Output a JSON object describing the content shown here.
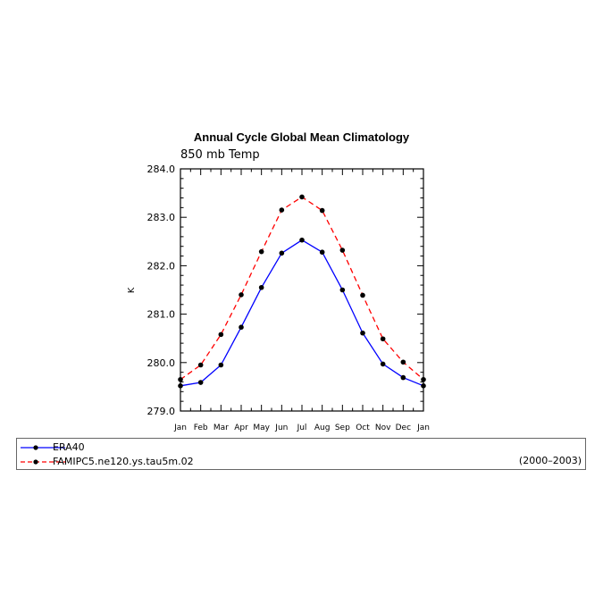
{
  "chart_data": {
    "type": "line",
    "title": "Annual Cycle Global Mean Climatology",
    "subtitle": "850 mb Temp",
    "ylabel": "K",
    "xlabel": "",
    "categories": [
      "Jan",
      "Feb",
      "Mar",
      "Apr",
      "May",
      "Jun",
      "Jul",
      "Aug",
      "Sep",
      "Oct",
      "Nov",
      "Dec",
      "Jan"
    ],
    "ylim": [
      279.0,
      284.0
    ],
    "yticks": [
      "279.0",
      "280.0",
      "281.0",
      "282.0",
      "283.0",
      "284.0"
    ],
    "grid": false,
    "series": [
      {
        "name": "ERA40",
        "color": "#0000ff",
        "dash": "solid",
        "values": [
          279.52,
          279.59,
          279.95,
          280.73,
          281.55,
          282.26,
          282.53,
          282.28,
          281.5,
          280.61,
          279.97,
          279.69,
          279.52
        ]
      },
      {
        "name": "FAMIPC5.ne120.ys.tau5m.02",
        "color": "#ff0000",
        "dash": "dashed",
        "values": [
          279.65,
          279.95,
          280.58,
          281.4,
          282.29,
          283.15,
          283.42,
          283.14,
          282.32,
          281.39,
          280.49,
          280.01,
          279.65
        ]
      }
    ],
    "marker_color": "#000000",
    "legend": {
      "placement": "bottom",
      "period": "(2000–2003)"
    }
  }
}
